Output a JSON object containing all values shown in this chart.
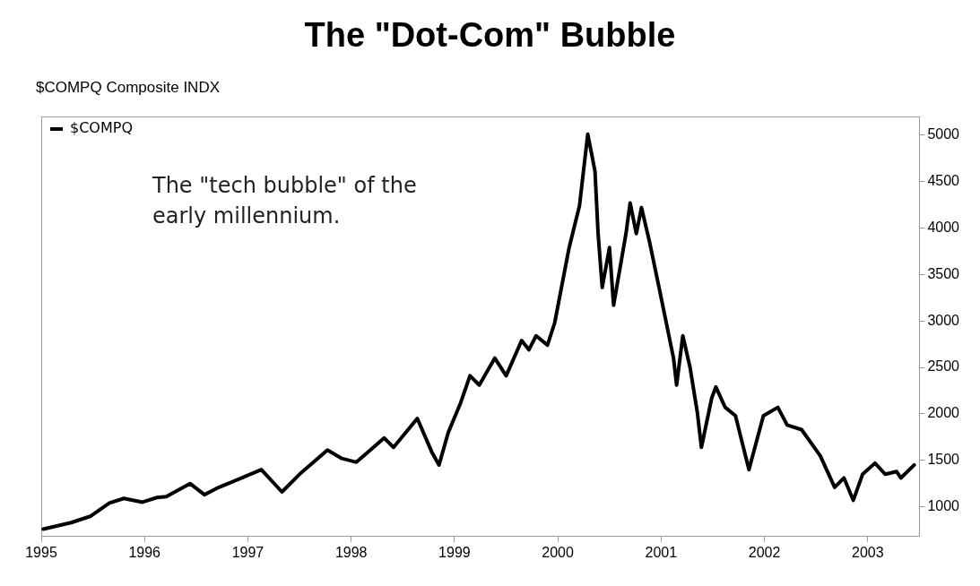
{
  "chart_data": {
    "type": "line",
    "title": "The \"Dot-Com\" Bubble",
    "subtitle": "$COMPQ Composite INDX",
    "annotations": [
      "The \"tech bubble\" of the early millennium."
    ],
    "xlim": [
      1995,
      2003.5
    ],
    "xticks": [
      1995,
      1996,
      1997,
      1998,
      1999,
      2000,
      2001,
      2002,
      2003
    ],
    "ylim": [
      680,
      5200
    ],
    "yticks": [
      1000,
      1500,
      2000,
      2500,
      3000,
      3500,
      4000,
      4500,
      5000
    ],
    "grid": false,
    "legend": "top left",
    "marker": "none",
    "line_style": "solid",
    "series": [
      {
        "name": "$COMPQ",
        "color": "#000000",
        "x": [
          1995.02,
          1995.29,
          1995.48,
          1995.66,
          1995.8,
          1995.98,
          1996.12,
          1996.21,
          1996.44,
          1996.58,
          1996.72,
          1996.94,
          1997.13,
          1997.33,
          1997.5,
          1997.77,
          1997.91,
          1998.05,
          1998.32,
          1998.41,
          1998.64,
          1998.78,
          1998.85,
          1998.94,
          1999.06,
          1999.15,
          1999.24,
          1999.39,
          1999.5,
          1999.65,
          1999.72,
          1999.79,
          1999.9,
          1999.97,
          2000.11,
          2000.21,
          2000.29,
          2000.36,
          2000.39,
          2000.43,
          2000.5,
          2000.54,
          2000.66,
          2000.7,
          2000.76,
          2000.81,
          2000.89,
          2000.98,
          2001.12,
          2001.15,
          2001.21,
          2001.28,
          2001.35,
          2001.39,
          2001.49,
          2001.53,
          2001.62,
          2001.72,
          2001.85,
          2001.99,
          2002.13,
          2002.22,
          2002.36,
          2002.54,
          2002.68,
          2002.77,
          2002.86,
          2002.95,
          2003.07,
          2003.17,
          2003.28,
          2003.32,
          2003.45
        ],
        "values": [
          760,
          830,
          900,
          1040,
          1090,
          1050,
          1100,
          1110,
          1250,
          1130,
          1210,
          1310,
          1400,
          1160,
          1350,
          1610,
          1520,
          1480,
          1740,
          1640,
          1950,
          1590,
          1450,
          1800,
          2120,
          2410,
          2310,
          2600,
          2410,
          2790,
          2690,
          2840,
          2740,
          2980,
          3790,
          4240,
          5010,
          4610,
          3940,
          3360,
          3790,
          3170,
          3940,
          4270,
          3940,
          4220,
          3840,
          3360,
          2600,
          2310,
          2840,
          2500,
          2020,
          1640,
          2170,
          2290,
          2070,
          1980,
          1400,
          1980,
          2070,
          1880,
          1830,
          1550,
          1210,
          1310,
          1070,
          1350,
          1470,
          1350,
          1380,
          1310,
          1450
        ]
      }
    ]
  }
}
